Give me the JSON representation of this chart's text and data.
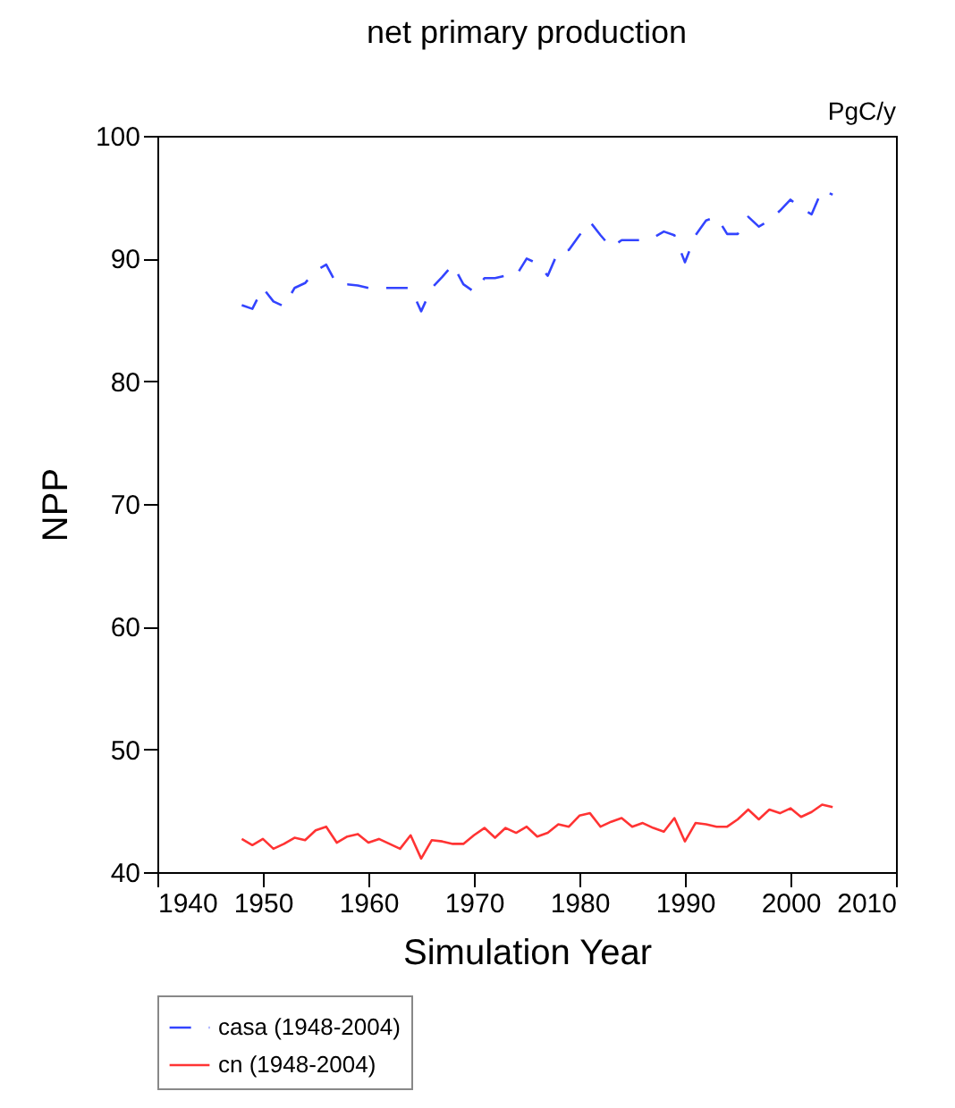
{
  "chart_data": {
    "type": "line",
    "title": "net primary production",
    "xlabel": "Simulation Year",
    "ylabel": "NPP",
    "annotations": [
      "PgC/y"
    ],
    "x": [
      1948,
      1949,
      1950,
      1951,
      1952,
      1953,
      1954,
      1955,
      1956,
      1957,
      1958,
      1959,
      1960,
      1961,
      1962,
      1963,
      1964,
      1965,
      1966,
      1967,
      1968,
      1969,
      1970,
      1971,
      1972,
      1973,
      1974,
      1975,
      1976,
      1977,
      1978,
      1979,
      1980,
      1981,
      1982,
      1983,
      1984,
      1985,
      1986,
      1987,
      1988,
      1989,
      1990,
      1991,
      1992,
      1993,
      1994,
      1995,
      1996,
      1997,
      1998,
      1999,
      2000,
      2001,
      2002,
      2003,
      2004
    ],
    "series": [
      {
        "name": "casa (1948-2004)",
        "color": "#3344ff",
        "line_style": "dashed",
        "values": [
          86.2,
          85.9,
          87.6,
          86.5,
          86.1,
          87.6,
          88.0,
          89.0,
          89.5,
          87.9,
          87.9,
          87.8,
          87.6,
          87.6,
          87.6,
          87.6,
          87.6,
          85.7,
          87.6,
          88.5,
          89.5,
          87.9,
          87.3,
          88.4,
          88.4,
          88.6,
          88.6,
          90.0,
          89.6,
          88.6,
          90.6,
          90.7,
          91.9,
          93.0,
          91.9,
          90.9,
          91.5,
          91.5,
          91.5,
          91.7,
          92.2,
          91.9,
          89.7,
          91.9,
          93.1,
          93.4,
          92.0,
          92.0,
          93.4,
          92.6,
          93.1,
          93.9,
          94.8,
          94.1,
          93.6,
          95.6,
          95.2
        ]
      },
      {
        "name": "cn (1948-2004)",
        "color": "#ff3333",
        "line_style": "solid",
        "values": [
          42.7,
          42.2,
          42.7,
          41.9,
          42.3,
          42.8,
          42.6,
          43.4,
          43.7,
          42.4,
          42.9,
          43.1,
          42.4,
          42.7,
          42.3,
          41.9,
          43.0,
          41.1,
          42.6,
          42.5,
          42.3,
          42.3,
          43.0,
          43.6,
          42.8,
          43.6,
          43.2,
          43.7,
          42.9,
          43.2,
          43.9,
          43.7,
          44.6,
          44.8,
          43.7,
          44.1,
          44.4,
          43.7,
          44.0,
          43.6,
          43.3,
          44.4,
          42.5,
          44.0,
          43.9,
          43.7,
          43.7,
          44.3,
          45.1,
          44.3,
          45.1,
          44.8,
          45.2,
          44.5,
          44.9,
          45.5,
          45.3
        ]
      }
    ],
    "xlim": [
      1940,
      2010
    ],
    "xticks": [
      1940,
      1950,
      1960,
      1970,
      1980,
      1990,
      2000,
      2010
    ],
    "ylim": [
      40,
      100
    ],
    "yticks": [
      40,
      50,
      60,
      70,
      80,
      90,
      100
    ],
    "grid": false,
    "legend": "bottom",
    "marker": "none"
  }
}
